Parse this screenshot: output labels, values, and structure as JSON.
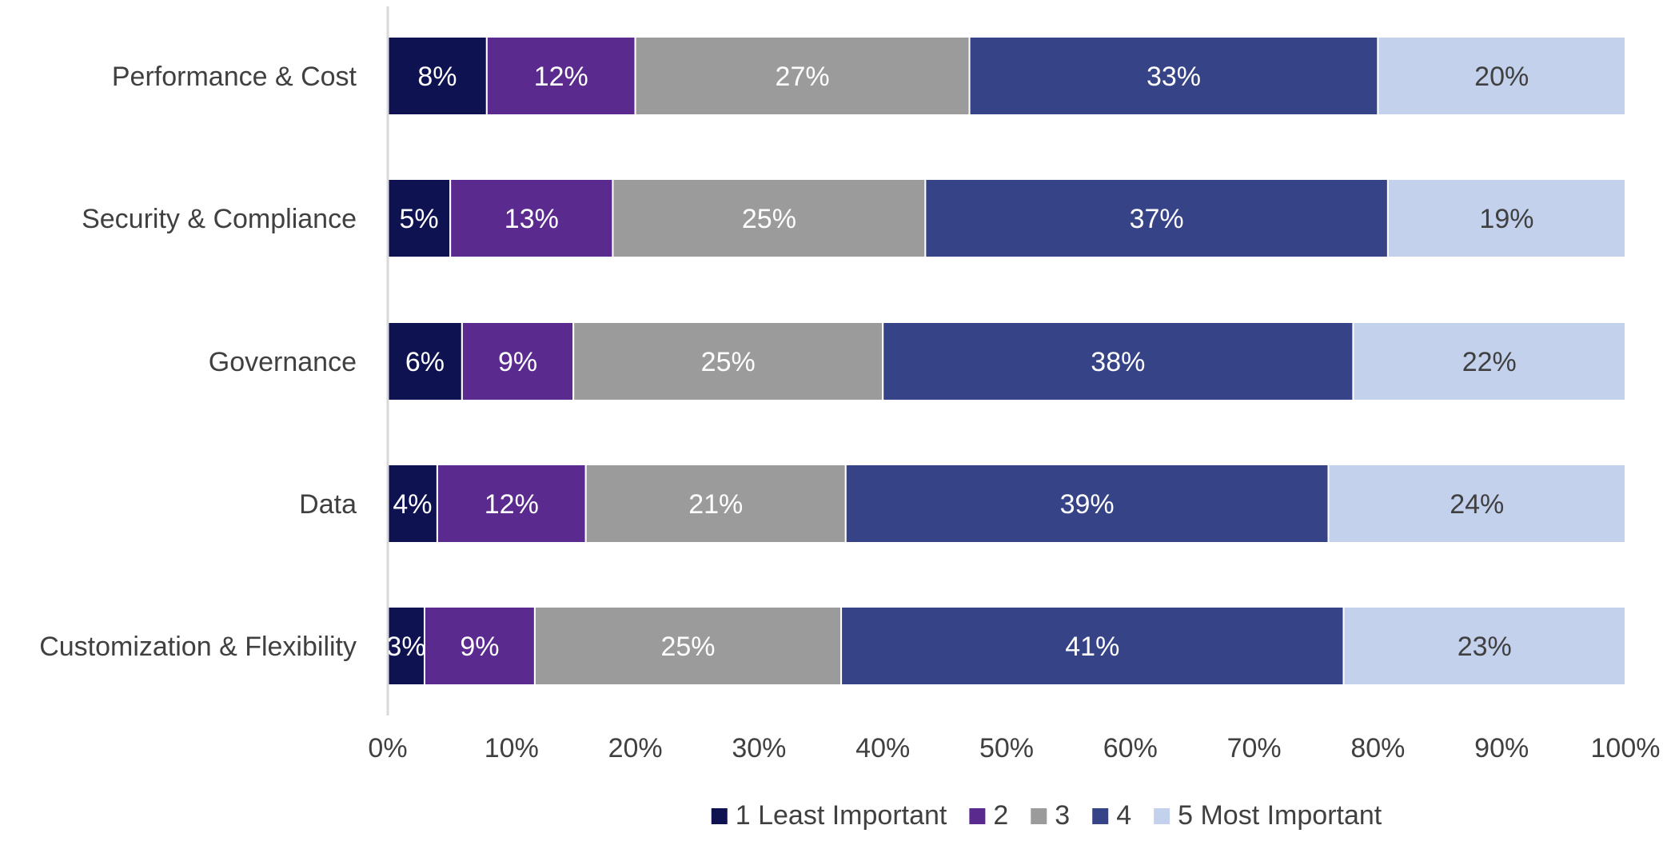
{
  "chart_data": {
    "type": "bar",
    "orientation": "horizontal",
    "stacked": "percent",
    "categories": [
      "Performance & Cost",
      "Security & Compliance",
      "Governance",
      "Data",
      "Customization & Flexibility"
    ],
    "series": [
      {
        "name": "1 Least Important",
        "color": "#0f1250",
        "label_color": "#ffffff",
        "values": [
          8,
          5,
          6,
          4,
          3
        ]
      },
      {
        "name": "2",
        "color": "#5a2a8e",
        "label_color": "#ffffff",
        "values": [
          12,
          13,
          9,
          12,
          9
        ]
      },
      {
        "name": "3",
        "color": "#9b9b9b",
        "label_color": "#ffffff",
        "values": [
          27,
          25,
          25,
          21,
          25
        ]
      },
      {
        "name": "4",
        "color": "#364487",
        "label_color": "#ffffff",
        "values": [
          33,
          37,
          38,
          39,
          41
        ]
      },
      {
        "name": "5 Most Important",
        "color": "#c3d1ec",
        "label_color": "#404040",
        "values": [
          20,
          19,
          22,
          24,
          23
        ]
      }
    ],
    "data_labels": [
      [
        "8%",
        "5%",
        "6%",
        "4%",
        "3%"
      ],
      [
        "12%",
        "13%",
        "9%",
        "12%",
        "9%"
      ],
      [
        "27%",
        "25%",
        "25%",
        "21%",
        "25%"
      ],
      [
        "33%",
        "37%",
        "38%",
        "39%",
        "41%"
      ],
      [
        "20%",
        "19%",
        "22%",
        "24%",
        "23%"
      ]
    ],
    "xlim": [
      0,
      100
    ],
    "x_ticks": [
      "0%",
      "10%",
      "20%",
      "30%",
      "40%",
      "50%",
      "60%",
      "70%",
      "80%",
      "90%",
      "100%"
    ],
    "title": "",
    "xlabel": "",
    "ylabel": "",
    "grid": false,
    "legend_position": "bottom"
  }
}
